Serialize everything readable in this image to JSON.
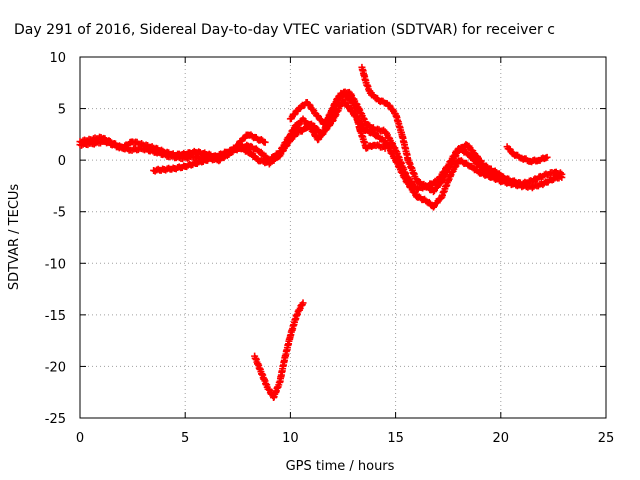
{
  "chart_data": {
    "type": "scatter",
    "title": "Day 291 of 2016, Sidereal Day-to-day VTEC variation (SDTVAR) for receiver c",
    "xlabel": "GPS time / hours",
    "ylabel": "SDTVAR / TECUs",
    "xlim": [
      0,
      25
    ],
    "ylim": [
      -25,
      10
    ],
    "xticks": [
      "0",
      "5",
      "10",
      "15",
      "20",
      "25"
    ],
    "yticks": [
      "10",
      "5",
      "0",
      "-5",
      "-10",
      "-15",
      "-20",
      "-25"
    ],
    "grid": true,
    "series_color": "#ff0000",
    "marker": "plus",
    "series": [
      {
        "values": [
          [
            0.0,
            1.8
          ],
          [
            0.5,
            2.0
          ],
          [
            1.0,
            2.2
          ],
          [
            1.5,
            1.7
          ],
          [
            2.0,
            1.2
          ],
          [
            2.5,
            1.8
          ],
          [
            3.0,
            1.5
          ],
          [
            3.5,
            1.2
          ],
          [
            4.0,
            0.8
          ],
          [
            4.5,
            0.5
          ],
          [
            5.0,
            0.6
          ],
          [
            5.5,
            0.8
          ],
          [
            6.0,
            0.6
          ],
          [
            6.5,
            0.3
          ],
          [
            7.0,
            0.5
          ],
          [
            7.5,
            1.5
          ],
          [
            7.8,
            2.2
          ],
          [
            8.0,
            2.5
          ],
          [
            8.5,
            2.0
          ],
          [
            8.8,
            1.8
          ]
        ]
      },
      {
        "values": [
          [
            0.0,
            1.5
          ],
          [
            0.6,
            1.6
          ],
          [
            1.2,
            1.8
          ],
          [
            1.8,
            1.3
          ],
          [
            2.4,
            1.0
          ],
          [
            3.0,
            1.1
          ],
          [
            3.6,
            0.8
          ],
          [
            4.2,
            0.4
          ],
          [
            4.8,
            0.2
          ],
          [
            5.4,
            0.3
          ],
          [
            6.0,
            0.2
          ],
          [
            6.6,
            0.0
          ],
          [
            7.2,
            0.8
          ],
          [
            7.6,
            1.2
          ],
          [
            8.0,
            0.8
          ],
          [
            8.5,
            0.0
          ],
          [
            9.0,
            -0.3
          ],
          [
            9.5,
            0.5
          ],
          [
            10.0,
            2.0
          ],
          [
            10.5,
            3.0
          ]
        ]
      },
      {
        "values": [
          [
            3.5,
            -1.0
          ],
          [
            4.0,
            -0.9
          ],
          [
            4.5,
            -0.8
          ],
          [
            5.0,
            -0.6
          ],
          [
            5.5,
            -0.3
          ],
          [
            6.0,
            0.0
          ],
          [
            6.5,
            0.4
          ],
          [
            7.0,
            0.8
          ],
          [
            7.5,
            1.2
          ],
          [
            8.0,
            1.4
          ],
          [
            8.5,
            0.9
          ],
          [
            9.0,
            0.0
          ],
          [
            9.5,
            0.8
          ],
          [
            10.0,
            2.5
          ],
          [
            10.3,
            3.5
          ]
        ]
      },
      {
        "values": [
          [
            9.8,
            1.5
          ],
          [
            10.2,
            3.0
          ],
          [
            10.6,
            4.0
          ],
          [
            11.0,
            3.0
          ],
          [
            11.3,
            2.0
          ],
          [
            11.6,
            2.8
          ],
          [
            12.0,
            5.0
          ],
          [
            12.3,
            6.2
          ],
          [
            12.6,
            6.3
          ],
          [
            13.0,
            5.5
          ],
          [
            13.3,
            3.0
          ],
          [
            13.6,
            1.2
          ],
          [
            14.0,
            1.5
          ],
          [
            14.5,
            1.2
          ]
        ]
      },
      {
        "values": [
          [
            10.0,
            4.0
          ],
          [
            10.4,
            5.0
          ],
          [
            10.8,
            5.6
          ],
          [
            11.2,
            4.5
          ],
          [
            11.6,
            3.5
          ],
          [
            12.0,
            4.8
          ],
          [
            12.4,
            6.5
          ],
          [
            12.8,
            6.6
          ],
          [
            13.2,
            5.2
          ],
          [
            13.6,
            3.5
          ],
          [
            14.0,
            3.0
          ],
          [
            14.5,
            2.8
          ],
          [
            15.0,
            1.0
          ],
          [
            15.5,
            -1.5
          ],
          [
            16.0,
            -2.8
          ],
          [
            16.5,
            -2.5
          ],
          [
            17.0,
            -2.0
          ],
          [
            17.5,
            -0.5
          ],
          [
            18.0,
            1.2
          ],
          [
            18.5,
            0.5
          ],
          [
            19.0,
            -0.6
          ],
          [
            19.5,
            -1.2
          ],
          [
            20.0,
            -1.6
          ],
          [
            20.5,
            -2.0
          ],
          [
            21.0,
            -2.3
          ],
          [
            21.5,
            -2.0
          ],
          [
            22.0,
            -1.5
          ],
          [
            22.5,
            -1.2
          ],
          [
            22.9,
            -1.3
          ]
        ]
      },
      {
        "values": [
          [
            10.5,
            2.8
          ],
          [
            11.0,
            3.5
          ],
          [
            11.5,
            2.5
          ],
          [
            12.0,
            3.8
          ],
          [
            12.5,
            5.8
          ],
          [
            13.0,
            4.5
          ],
          [
            13.5,
            3.0
          ],
          [
            14.0,
            2.5
          ],
          [
            14.5,
            1.8
          ],
          [
            15.0,
            0.0
          ],
          [
            15.5,
            -2.0
          ],
          [
            16.0,
            -3.5
          ],
          [
            16.5,
            -4.0
          ],
          [
            16.8,
            -4.5
          ],
          [
            17.2,
            -3.5
          ],
          [
            17.6,
            -1.5
          ],
          [
            18.0,
            0.0
          ],
          [
            18.5,
            -0.5
          ],
          [
            19.0,
            -1.2
          ],
          [
            19.5,
            -1.6
          ],
          [
            20.0,
            -2.0
          ],
          [
            20.5,
            -2.3
          ],
          [
            21.0,
            -2.5
          ],
          [
            21.5,
            -2.6
          ],
          [
            22.0,
            -2.3
          ],
          [
            22.5,
            -1.8
          ],
          [
            22.9,
            -1.6
          ]
        ]
      },
      {
        "values": [
          [
            13.4,
            9.0
          ],
          [
            13.6,
            7.5
          ],
          [
            13.8,
            6.5
          ],
          [
            14.2,
            5.8
          ],
          [
            14.6,
            5.5
          ],
          [
            15.0,
            4.5
          ],
          [
            15.3,
            2.5
          ],
          [
            15.6,
            0.0
          ],
          [
            16.0,
            -2.0
          ],
          [
            16.4,
            -2.5
          ],
          [
            16.8,
            -3.0
          ],
          [
            17.2,
            -2.0
          ],
          [
            17.6,
            -0.5
          ],
          [
            18.0,
            1.0
          ],
          [
            18.4,
            1.5
          ],
          [
            18.8,
            0.5
          ],
          [
            19.2,
            -0.5
          ],
          [
            19.6,
            -1.0
          ],
          [
            20.0,
            -1.4
          ]
        ]
      },
      {
        "values": [
          [
            20.3,
            1.3
          ],
          [
            20.6,
            0.6
          ],
          [
            21.0,
            0.2
          ],
          [
            21.4,
            -0.1
          ],
          [
            21.8,
            0.0
          ],
          [
            22.2,
            0.3
          ]
        ]
      },
      {
        "values": [
          [
            8.3,
            -19.0
          ],
          [
            8.6,
            -20.5
          ],
          [
            8.9,
            -22.0
          ],
          [
            9.2,
            -23.0
          ],
          [
            9.5,
            -21.5
          ],
          [
            9.7,
            -19.5
          ],
          [
            10.0,
            -17.0
          ],
          [
            10.3,
            -15.0
          ],
          [
            10.6,
            -13.8
          ]
        ]
      }
    ]
  }
}
